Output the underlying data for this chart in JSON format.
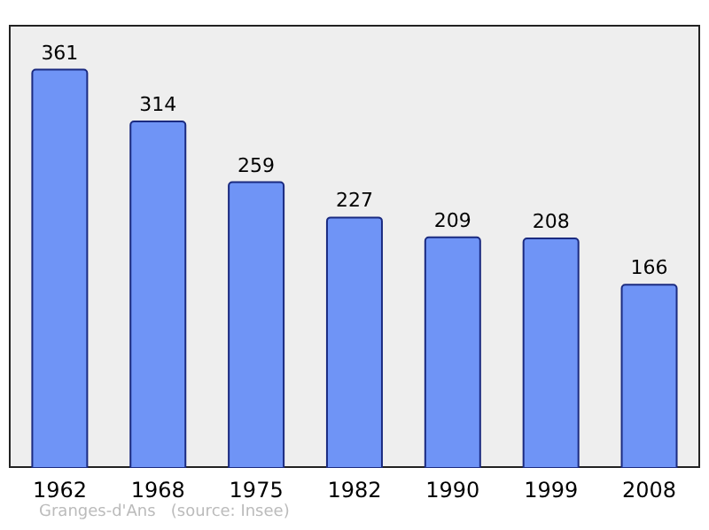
{
  "chart_data": {
    "type": "bar",
    "categories": [
      "1962",
      "1968",
      "1975",
      "1982",
      "1990",
      "1999",
      "2008"
    ],
    "values": [
      361,
      314,
      259,
      227,
      209,
      208,
      166
    ],
    "color": "#6f94f6",
    "ylim": [
      0,
      400
    ],
    "data_labels": true,
    "grid": false,
    "tick_labels": "x",
    "annotations": [
      "Granges-d'Ans   (source: Insee)"
    ]
  }
}
